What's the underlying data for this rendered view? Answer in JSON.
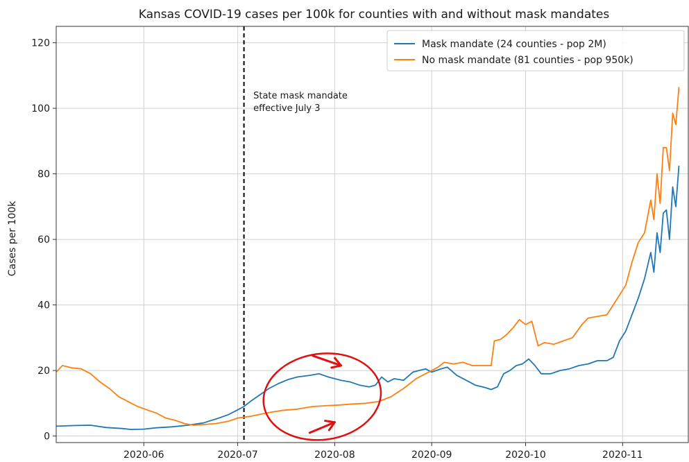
{
  "chart_data": {
    "type": "line",
    "title": "Kansas COVID-19 cases per 100k for counties with and without mask mandates",
    "xlabel": "",
    "ylabel": "Cases per 100k",
    "x_type": "date",
    "xlim": [
      "2020-05-04",
      "2020-11-22"
    ],
    "ylim": [
      -2,
      125
    ],
    "x_ticks": [
      "2020-06-01",
      "2020-07-01",
      "2020-08-01",
      "2020-09-01",
      "2020-10-01",
      "2020-11-01"
    ],
    "x_tick_labels": [
      "2020-06",
      "2020-07",
      "2020-08",
      "2020-09",
      "2020-10",
      "2020-11"
    ],
    "y_ticks": [
      0,
      20,
      40,
      60,
      80,
      100,
      120
    ],
    "y_tick_labels": [
      "0",
      "20",
      "40",
      "60",
      "80",
      "100",
      "120"
    ],
    "grid": true,
    "legend_position": "top-right",
    "vline": {
      "x": "2020-07-03",
      "style": "dashed",
      "color": "#000000"
    },
    "annotation": {
      "lines": [
        "State mask mandate",
        "effective July 3"
      ],
      "x": "2020-07-06",
      "y": 103
    },
    "markup": {
      "circle_color": "#e01010",
      "arrow_color": "#e01010"
    },
    "series": [
      {
        "name": "Mask mandate (24 counties - pop 2M)",
        "color": "#1f77b4",
        "points": [
          [
            "2020-05-04",
            3.0
          ],
          [
            "2020-05-10",
            3.2
          ],
          [
            "2020-05-15",
            3.3
          ],
          [
            "2020-05-20",
            2.6
          ],
          [
            "2020-05-25",
            2.3
          ],
          [
            "2020-05-28",
            2.0
          ],
          [
            "2020-06-01",
            2.1
          ],
          [
            "2020-06-05",
            2.5
          ],
          [
            "2020-06-10",
            2.8
          ],
          [
            "2020-06-15",
            3.3
          ],
          [
            "2020-06-20",
            4.0
          ],
          [
            "2020-06-25",
            5.5
          ],
          [
            "2020-06-28",
            6.5
          ],
          [
            "2020-07-01",
            8.0
          ],
          [
            "2020-07-03",
            9.0
          ],
          [
            "2020-07-05",
            10.5
          ],
          [
            "2020-07-08",
            12.5
          ],
          [
            "2020-07-11",
            14.5
          ],
          [
            "2020-07-14",
            16.0
          ],
          [
            "2020-07-17",
            17.2
          ],
          [
            "2020-07-20",
            18.0
          ],
          [
            "2020-07-24",
            18.5
          ],
          [
            "2020-07-27",
            19.0
          ],
          [
            "2020-07-30",
            18.0
          ],
          [
            "2020-08-03",
            17.0
          ],
          [
            "2020-08-06",
            16.5
          ],
          [
            "2020-08-09",
            15.5
          ],
          [
            "2020-08-12",
            15.0
          ],
          [
            "2020-08-14",
            15.5
          ],
          [
            "2020-08-16",
            18.0
          ],
          [
            "2020-08-18",
            16.5
          ],
          [
            "2020-08-20",
            17.5
          ],
          [
            "2020-08-23",
            17.0
          ],
          [
            "2020-08-26",
            19.5
          ],
          [
            "2020-08-30",
            20.5
          ],
          [
            "2020-09-01",
            19.5
          ],
          [
            "2020-09-04",
            20.5
          ],
          [
            "2020-09-06",
            21.0
          ],
          [
            "2020-09-09",
            18.5
          ],
          [
            "2020-09-12",
            17.0
          ],
          [
            "2020-09-15",
            15.5
          ],
          [
            "2020-09-18",
            14.8
          ],
          [
            "2020-09-20",
            14.2
          ],
          [
            "2020-09-22",
            15.0
          ],
          [
            "2020-09-24",
            19.0
          ],
          [
            "2020-09-26",
            20.0
          ],
          [
            "2020-09-28",
            21.5
          ],
          [
            "2020-09-30",
            22.0
          ],
          [
            "2020-10-02",
            23.5
          ],
          [
            "2020-10-04",
            21.5
          ],
          [
            "2020-10-06",
            19.0
          ],
          [
            "2020-10-09",
            19.0
          ],
          [
            "2020-10-12",
            20.0
          ],
          [
            "2020-10-15",
            20.5
          ],
          [
            "2020-10-18",
            21.5
          ],
          [
            "2020-10-21",
            22.0
          ],
          [
            "2020-10-24",
            23.0
          ],
          [
            "2020-10-27",
            23.0
          ],
          [
            "2020-10-29",
            24.0
          ],
          [
            "2020-10-31",
            29.0
          ],
          [
            "2020-11-02",
            32.0
          ],
          [
            "2020-11-04",
            37.0
          ],
          [
            "2020-11-06",
            42.0
          ],
          [
            "2020-11-08",
            48.0
          ],
          [
            "2020-11-10",
            56.0
          ],
          [
            "2020-11-11",
            50.0
          ],
          [
            "2020-11-12",
            62.0
          ],
          [
            "2020-11-13",
            56.0
          ],
          [
            "2020-11-14",
            68.0
          ],
          [
            "2020-11-15",
            69.0
          ],
          [
            "2020-11-16",
            60.0
          ],
          [
            "2020-11-17",
            76.0
          ],
          [
            "2020-11-18",
            70.0
          ],
          [
            "2020-11-19",
            82.5
          ]
        ]
      },
      {
        "name": "No mask mandate (81 counties - pop 950k)",
        "color": "#ff7f0e",
        "points": [
          [
            "2020-05-04",
            19.5
          ],
          [
            "2020-05-06",
            21.5
          ],
          [
            "2020-05-09",
            20.8
          ],
          [
            "2020-05-12",
            20.5
          ],
          [
            "2020-05-15",
            19.0
          ],
          [
            "2020-05-18",
            16.5
          ],
          [
            "2020-05-21",
            14.5
          ],
          [
            "2020-05-24",
            12.0
          ],
          [
            "2020-05-27",
            10.5
          ],
          [
            "2020-05-30",
            9.0
          ],
          [
            "2020-06-02",
            8.0
          ],
          [
            "2020-06-05",
            7.0
          ],
          [
            "2020-06-08",
            5.5
          ],
          [
            "2020-06-11",
            4.8
          ],
          [
            "2020-06-14",
            3.8
          ],
          [
            "2020-06-17",
            3.3
          ],
          [
            "2020-06-20",
            3.5
          ],
          [
            "2020-06-24",
            3.8
          ],
          [
            "2020-06-28",
            4.5
          ],
          [
            "2020-07-01",
            5.5
          ],
          [
            "2020-07-05",
            6.0
          ],
          [
            "2020-07-10",
            7.0
          ],
          [
            "2020-07-15",
            7.8
          ],
          [
            "2020-07-20",
            8.2
          ],
          [
            "2020-07-25",
            9.0
          ],
          [
            "2020-07-30",
            9.3
          ],
          [
            "2020-08-03",
            9.5
          ],
          [
            "2020-08-07",
            9.8
          ],
          [
            "2020-08-11",
            10.0
          ],
          [
            "2020-08-15",
            10.5
          ],
          [
            "2020-08-19",
            12.0
          ],
          [
            "2020-08-23",
            14.5
          ],
          [
            "2020-08-27",
            17.5
          ],
          [
            "2020-08-31",
            19.5
          ],
          [
            "2020-09-03",
            21.0
          ],
          [
            "2020-09-05",
            22.5
          ],
          [
            "2020-09-08",
            22.0
          ],
          [
            "2020-09-11",
            22.5
          ],
          [
            "2020-09-14",
            21.5
          ],
          [
            "2020-09-17",
            21.5
          ],
          [
            "2020-09-20",
            21.5
          ],
          [
            "2020-09-21",
            29.0
          ],
          [
            "2020-09-23",
            29.5
          ],
          [
            "2020-09-25",
            31.0
          ],
          [
            "2020-09-27",
            33.0
          ],
          [
            "2020-09-29",
            35.5
          ],
          [
            "2020-10-01",
            34.0
          ],
          [
            "2020-10-03",
            35.0
          ],
          [
            "2020-10-05",
            27.5
          ],
          [
            "2020-10-07",
            28.5
          ],
          [
            "2020-10-10",
            28.0
          ],
          [
            "2020-10-13",
            29.0
          ],
          [
            "2020-10-16",
            30.0
          ],
          [
            "2020-10-19",
            34.0
          ],
          [
            "2020-10-21",
            36.0
          ],
          [
            "2020-10-24",
            36.5
          ],
          [
            "2020-10-27",
            37.0
          ],
          [
            "2020-10-29",
            40.0
          ],
          [
            "2020-10-31",
            43.0
          ],
          [
            "2020-11-02",
            46.0
          ],
          [
            "2020-11-04",
            53.0
          ],
          [
            "2020-11-06",
            59.0
          ],
          [
            "2020-11-08",
            62.0
          ],
          [
            "2020-11-10",
            72.0
          ],
          [
            "2020-11-11",
            66.0
          ],
          [
            "2020-11-12",
            80.0
          ],
          [
            "2020-11-13",
            71.0
          ],
          [
            "2020-11-14",
            88.0
          ],
          [
            "2020-11-15",
            88.0
          ],
          [
            "2020-11-16",
            81.0
          ],
          [
            "2020-11-17",
            98.5
          ],
          [
            "2020-11-18",
            95.0
          ],
          [
            "2020-11-19",
            106.5
          ]
        ]
      }
    ]
  }
}
